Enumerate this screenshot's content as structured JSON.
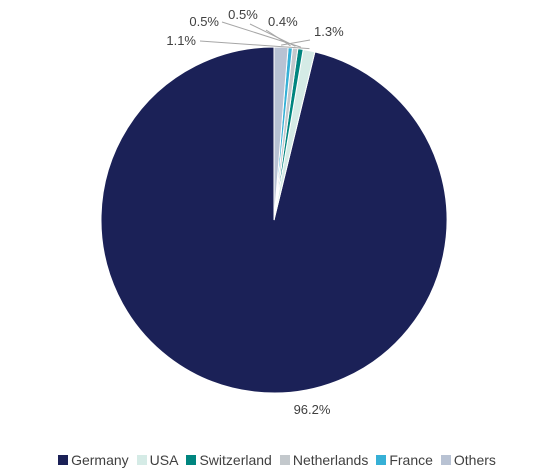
{
  "chart_data": {
    "type": "pie",
    "title": "",
    "start_angle_deg": 0,
    "direction": "counterclockwise",
    "slices": [
      {
        "name": "Germany",
        "value": 96.2,
        "label": "96.2%",
        "color": "#1b2157"
      },
      {
        "name": "USA",
        "value": 1.1,
        "label": "1.1%",
        "color": "#d5ebe6"
      },
      {
        "name": "Switzerland",
        "value": 0.5,
        "label": "0.5%",
        "color": "#00857f"
      },
      {
        "name": "Netherlands",
        "value": 0.5,
        "label": "0.5%",
        "color": "#c3c8cc"
      },
      {
        "name": "France",
        "value": 0.4,
        "label": "0.4%",
        "color": "#36b0d6"
      },
      {
        "name": "Others",
        "value": 1.3,
        "label": "1.3%",
        "color": "#b8c2d3"
      }
    ],
    "legend": {
      "position": "bottom"
    }
  }
}
